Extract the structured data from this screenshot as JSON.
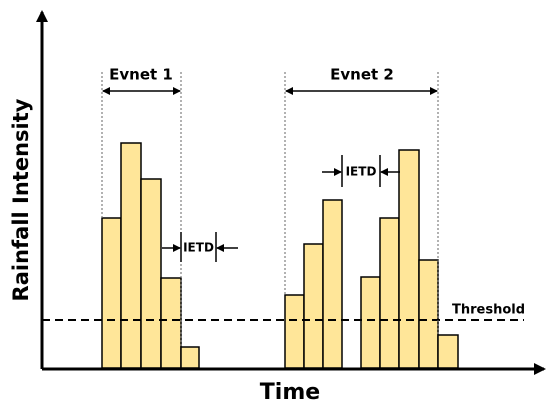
{
  "axes": {
    "x_label": "Time",
    "y_label": "Rainfall Intensity"
  },
  "events": [
    {
      "label": "Evnet 1"
    },
    {
      "label": "Evnet 2"
    }
  ],
  "ietd": [
    {
      "label": "IETD"
    },
    {
      "label": "IETD"
    }
  ],
  "threshold": {
    "label": "Threshold"
  }
}
